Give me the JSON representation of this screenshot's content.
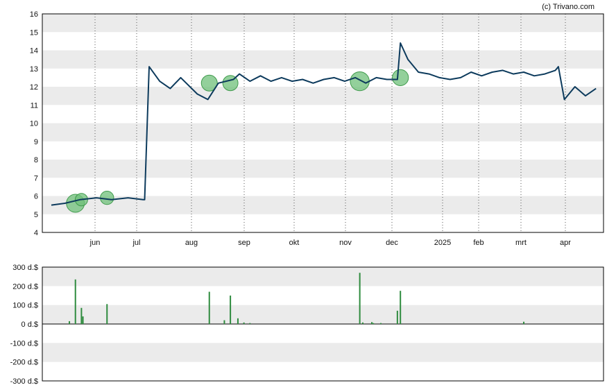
{
  "credit": "(c) Trivano.com",
  "colors": {
    "price_line": "#0c3a5c",
    "volume_bar": "#2e8b3e",
    "bubble_fill": "#6fc07a",
    "bubble_stroke": "#3f9a4c",
    "band": "#ebebeb",
    "gridline": "#555555",
    "frame": "#000000"
  },
  "chart_data": [
    {
      "type": "line",
      "title": "",
      "grid": true,
      "ylim": [
        4,
        16
      ],
      "y_ticks": [
        "4",
        "5",
        "6",
        "7",
        "8",
        "9",
        "10",
        "11",
        "12",
        "13",
        "14",
        "15",
        "16"
      ],
      "x_ticks": [
        "jun",
        "jul",
        "aug",
        "sep",
        "okt",
        "nov",
        "dec",
        "2025",
        "feb",
        "mrt",
        "apr"
      ],
      "x": [
        "2024-05-01",
        "2024-05-10",
        "2024-05-20",
        "2024-05-31",
        "2024-06-10",
        "2024-06-21",
        "2024-07-01",
        "2024-07-02",
        "2024-07-05",
        "2024-07-12",
        "2024-07-19",
        "2024-07-26",
        "2024-08-06",
        "2024-08-13",
        "2024-08-20",
        "2024-08-30",
        "2024-09-03",
        "2024-09-10",
        "2024-09-17",
        "2024-09-24",
        "2024-10-01",
        "2024-10-08",
        "2024-10-15",
        "2024-10-22",
        "2024-10-29",
        "2024-11-05",
        "2024-11-12",
        "2024-11-19",
        "2024-11-26",
        "2024-12-03",
        "2024-12-10",
        "2024-12-17",
        "2024-12-19",
        "2024-12-24",
        "2024-12-31",
        "2025-01-07",
        "2025-01-14",
        "2025-01-21",
        "2025-01-28",
        "2025-02-04",
        "2025-02-11",
        "2025-02-18",
        "2025-02-25",
        "2025-03-04",
        "2025-03-11",
        "2025-03-18",
        "2025-03-25",
        "2025-04-01",
        "2025-04-03",
        "2025-04-07",
        "2025-04-14",
        "2025-04-21",
        "2025-04-28"
      ],
      "series": [
        {
          "values": [
            5.5,
            5.6,
            5.8,
            5.9,
            5.8,
            5.9,
            5.8,
            5.8,
            13.1,
            12.3,
            11.9,
            12.5,
            11.6,
            11.3,
            12.2,
            12.4,
            12.7,
            12.3,
            12.6,
            12.3,
            12.5,
            12.3,
            12.4,
            12.2,
            12.4,
            12.5,
            12.3,
            12.5,
            12.2,
            12.5,
            12.4,
            12.4,
            14.4,
            13.5,
            12.8,
            12.7,
            12.5,
            12.4,
            12.5,
            12.8,
            12.6,
            12.8,
            12.9,
            12.7,
            12.8,
            12.6,
            12.7,
            12.9,
            13.1,
            11.3,
            12.0,
            11.5,
            11.9
          ]
        }
      ],
      "bubbles": [
        {
          "x": "2024-05-17",
          "y": 5.6,
          "value": 235
        },
        {
          "x": "2024-05-21",
          "y": 5.8,
          "value": 85
        },
        {
          "x": "2024-06-07",
          "y": 5.9,
          "value": 105
        },
        {
          "x": "2024-08-14",
          "y": 12.2,
          "value": 170
        },
        {
          "x": "2024-08-28",
          "y": 12.2,
          "value": 150
        },
        {
          "x": "2024-11-22",
          "y": 12.3,
          "value": 270
        },
        {
          "x": "2024-12-19",
          "y": 12.5,
          "value": 175
        }
      ]
    },
    {
      "type": "bar",
      "title": "",
      "grid": true,
      "ylim": [
        -300,
        300
      ],
      "y_ticks": [
        "300 d.$",
        "200 d.$",
        "100 d.$",
        "0 d.$",
        "-100 d.$",
        "-200 d.$",
        "-300 d.$"
      ],
      "x": [
        "2024-05-13",
        "2024-05-17",
        "2024-05-21",
        "2024-05-22",
        "2024-06-07",
        "2024-08-14",
        "2024-08-24",
        "2024-08-28",
        "2024-09-02",
        "2024-09-06",
        "2024-09-10",
        "2024-11-22",
        "2024-11-24",
        "2024-11-30",
        "2024-12-01",
        "2024-12-06",
        "2024-12-17",
        "2024-12-19",
        "2025-03-11"
      ],
      "values": [
        15,
        235,
        85,
        40,
        105,
        170,
        20,
        150,
        30,
        8,
        5,
        270,
        8,
        10,
        5,
        5,
        70,
        175,
        12
      ]
    }
  ]
}
